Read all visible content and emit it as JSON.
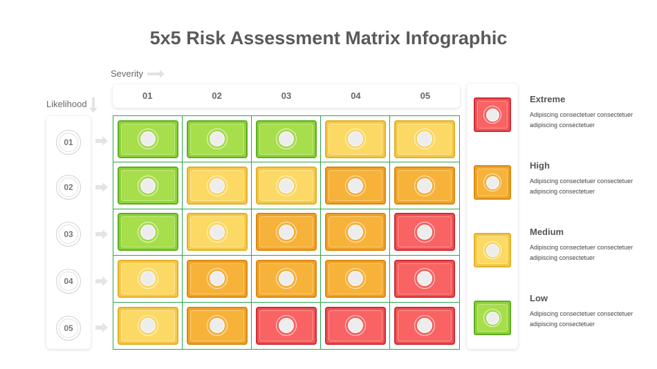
{
  "title": "5x5 Risk Assessment Matrix Infographic",
  "severity_label": "Severity",
  "likelihood_label": "Likelihood",
  "columns": [
    "01",
    "02",
    "03",
    "04",
    "05"
  ],
  "rows": [
    "01",
    "02",
    "03",
    "04",
    "05"
  ],
  "matrix": [
    [
      "low",
      "low",
      "low",
      "medium",
      "medium"
    ],
    [
      "low",
      "medium",
      "medium",
      "high",
      "high"
    ],
    [
      "low",
      "medium",
      "high",
      "high",
      "extreme"
    ],
    [
      "medium",
      "high",
      "high",
      "high",
      "extreme"
    ],
    [
      "medium",
      "high",
      "extreme",
      "extreme",
      "extreme"
    ]
  ],
  "colors": {
    "low": "#8fd33a",
    "medium": "#f6c94b",
    "high": "#f0a428",
    "extreme": "#f15454",
    "grid_line": "#2aa548"
  },
  "legend": [
    {
      "key": "extreme",
      "title": "Extreme",
      "desc": "Adipiscing consectetuer consectetuer adipiscing consectetuer"
    },
    {
      "key": "high",
      "title": "High",
      "desc": "Adipiscing consectetuer consectetuer adipiscing consectetuer"
    },
    {
      "key": "medium",
      "title": "Medium",
      "desc": "Adipiscing consectetuer consectetuer adipiscing consectetuer"
    },
    {
      "key": "low",
      "title": "Low",
      "desc": "Adipiscing consectetuer consectetuer adipiscing consectetuer"
    }
  ]
}
